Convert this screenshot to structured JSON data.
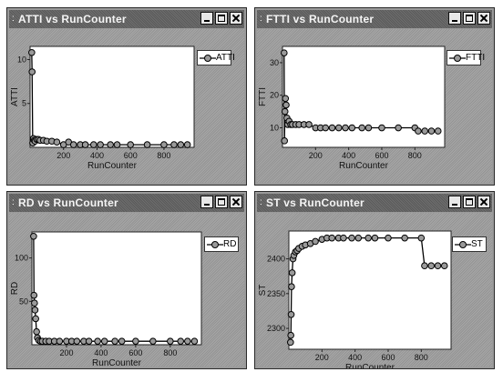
{
  "windows": [
    {
      "id": "atti",
      "title": "ATTI vs RunCounter",
      "chart_data": {
        "type": "line",
        "title": "ATTI vs RunCounter",
        "xlabel": "RunCounter",
        "ylabel": "ATTI",
        "xlim": [
          0,
          980
        ],
        "ylim": [
          0,
          11.5
        ],
        "xticks": [
          200,
          400,
          600,
          800
        ],
        "yticks": [
          5,
          10
        ],
        "legend_position": "top-right",
        "series": [
          {
            "name": "ATTI",
            "x": [
              10,
              12,
              16,
              20,
              25,
              30,
              40,
              50,
              60,
              80,
              100,
              130,
              160,
              200,
              230,
              260,
              300,
              330,
              380,
              420,
              480,
              520,
              600,
              700,
              800,
              860,
              900,
              940
            ],
            "y": [
              10.8,
              8.6,
              0.5,
              1.0,
              0.8,
              0.7,
              0.9,
              0.9,
              0.8,
              0.8,
              0.7,
              0.7,
              0.6,
              0.3,
              0.6,
              0.3,
              0.3,
              0.3,
              0.3,
              0.3,
              0.3,
              0.3,
              0.3,
              0.3,
              0.3,
              0.3,
              0.3,
              0.3
            ]
          }
        ]
      }
    },
    {
      "id": "ftti",
      "title": "FTTI vs RunCounter",
      "chart_data": {
        "type": "line",
        "title": "FTTI vs RunCounter",
        "xlabel": "RunCounter",
        "ylabel": "FTTI",
        "xlim": [
          0,
          980
        ],
        "ylim": [
          4,
          35
        ],
        "xticks": [
          200,
          400,
          600,
          800
        ],
        "yticks": [
          10,
          20,
          30
        ],
        "legend_position": "top-right",
        "series": [
          {
            "name": "FTTI",
            "x": [
              10,
              12,
              15,
              18,
              22,
              27,
              32,
              40,
              50,
              60,
              80,
              100,
              130,
              160,
              200,
              230,
              260,
              300,
              340,
              380,
              420,
              480,
              520,
              600,
              700,
              800,
              820,
              860,
              900,
              940
            ],
            "y": [
              33,
              6,
              15,
              19,
              17,
              13,
              11,
              12,
              11,
              11,
              11,
              11,
              11,
              11,
              10,
              10,
              10,
              10,
              10,
              10,
              10,
              10,
              10,
              10,
              10,
              10,
              9,
              9,
              9,
              9
            ]
          }
        ]
      }
    },
    {
      "id": "rd",
      "title": "RD vs RunCounter",
      "chart_data": {
        "type": "line",
        "title": "RD vs RunCounter",
        "xlabel": "RunCounter",
        "ylabel": "RD",
        "xlim": [
          0,
          980
        ],
        "ylim": [
          0,
          130
        ],
        "xticks": [
          200,
          400,
          600,
          800
        ],
        "yticks": [
          50,
          100
        ],
        "legend_position": "top-right",
        "series": [
          {
            "name": "RD",
            "x": [
              10,
              12,
              15,
              18,
              22,
              27,
              32,
              40,
              50,
              60,
              80,
              100,
              130,
              160,
              200,
              230,
              260,
              300,
              330,
              380,
              420,
              480,
              520,
              600,
              700,
              800,
              860,
              900,
              940
            ],
            "y": [
              125,
              57,
              48,
              40,
              30,
              15,
              8,
              5,
              4,
              4,
              4,
              4,
              4,
              4,
              4,
              4,
              4,
              4,
              4,
              4,
              4,
              4,
              4,
              4,
              4,
              4,
              4,
              4,
              4
            ]
          }
        ]
      }
    },
    {
      "id": "st",
      "title": "ST vs RunCounter",
      "chart_data": {
        "type": "line",
        "title": "ST vs RunCounter",
        "xlabel": "RunCounter",
        "ylabel": "ST",
        "xlim": [
          0,
          980
        ],
        "ylim": [
          2270,
          2440
        ],
        "xticks": [
          200,
          400,
          600,
          800
        ],
        "yticks": [
          2300,
          2350,
          2400
        ],
        "legend_position": "top-right",
        "series": [
          {
            "name": "ST",
            "x": [
              10,
              12,
              14,
              16,
              20,
              25,
              30,
              40,
              50,
              60,
              80,
              100,
              130,
              160,
              200,
              230,
              260,
              300,
              330,
              380,
              420,
              480,
              520,
              600,
              700,
              800,
              820,
              860,
              900,
              940
            ],
            "y": [
              2280,
              2290,
              2320,
              2360,
              2380,
              2400,
              2405,
              2410,
              2412,
              2415,
              2418,
              2420,
              2422,
              2425,
              2428,
              2430,
              2430,
              2430,
              2430,
              2430,
              2430,
              2430,
              2430,
              2430,
              2430,
              2430,
              2390,
              2390,
              2390,
              2390
            ]
          }
        ]
      }
    }
  ]
}
